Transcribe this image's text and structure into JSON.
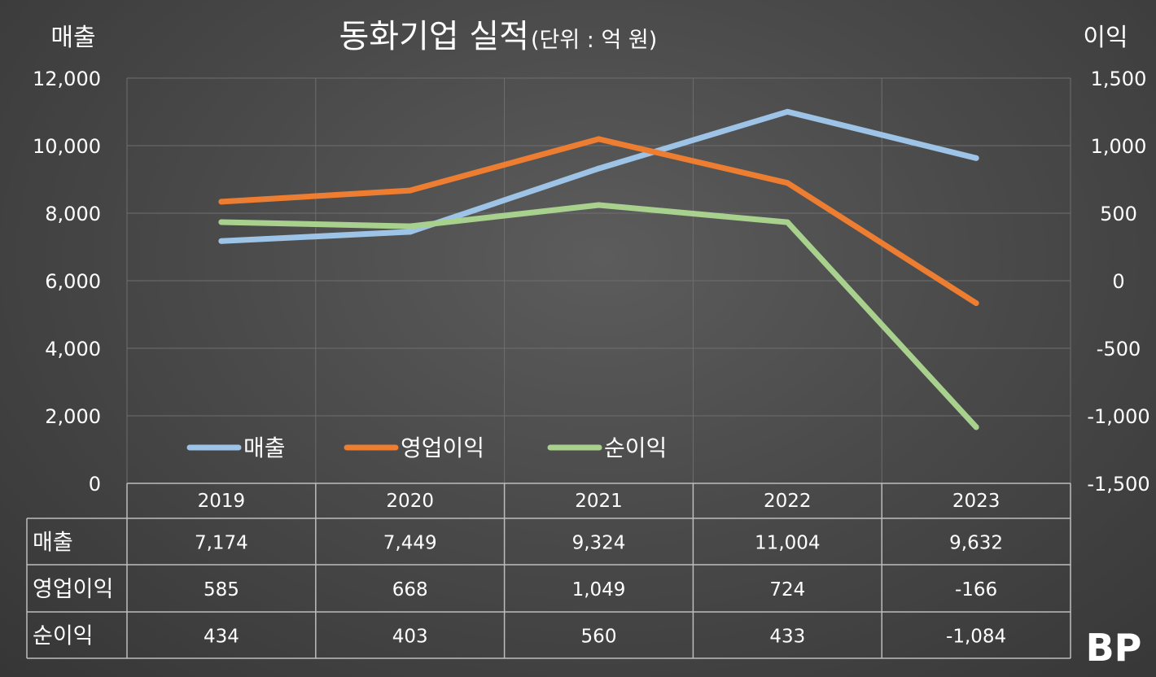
{
  "chart_data": {
    "type": "line",
    "title": "동화기업 실적",
    "subtitle": "(단위 : 억 원)",
    "ylabel_left": "매출",
    "ylabel_right": "이익",
    "categories": [
      "2019",
      "2020",
      "2021",
      "2022",
      "2023"
    ],
    "ylim_left": [
      0,
      12000
    ],
    "yticks_left": [
      "0",
      "2,000",
      "4,000",
      "6,000",
      "8,000",
      "10,000",
      "12,000"
    ],
    "ylim_right": [
      -1500,
      1500
    ],
    "yticks_right": [
      "-1,500",
      "-1,000",
      "-500",
      "0",
      "500",
      "1,000",
      "1,500"
    ],
    "legend_position": "bottom-left inside plot",
    "grid": true,
    "series": [
      {
        "name": "매출",
        "axis": "left",
        "color": "#9dc3e6",
        "values": [
          7174,
          7449,
          9324,
          11004,
          9632
        ],
        "labels": [
          "7,174",
          "7,449",
          "9,324",
          "11,004",
          "9,632"
        ]
      },
      {
        "name": "영업이익",
        "axis": "right",
        "color": "#ed7d31",
        "values": [
          585,
          668,
          1049,
          724,
          -166
        ],
        "labels": [
          "585",
          "668",
          "1,049",
          "724",
          "-166"
        ]
      },
      {
        "name": "순이익",
        "axis": "right",
        "color": "#a9d18e",
        "values": [
          434,
          403,
          560,
          433,
          -1084
        ],
        "labels": [
          "434",
          "403",
          "560",
          "433",
          "-1,084"
        ]
      }
    ]
  },
  "watermark": "BP"
}
